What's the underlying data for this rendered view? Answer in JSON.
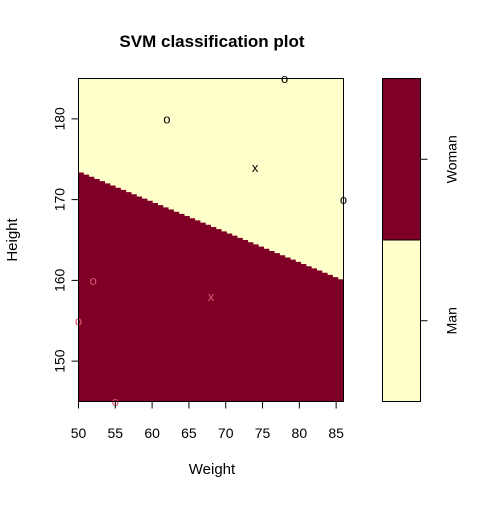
{
  "chart_data": {
    "type": "scatter",
    "title": "SVM classification plot",
    "xlabel": "Weight",
    "ylabel": "Height",
    "xlim": [
      50,
      86
    ],
    "ylim": [
      145,
      185
    ],
    "x_ticks": [
      50,
      55,
      60,
      65,
      70,
      75,
      80,
      85
    ],
    "y_ticks": [
      150,
      160,
      170,
      180
    ],
    "decision_boundary": {
      "description_points": [
        [
          50,
          173.5
        ],
        [
          86,
          160
        ]
      ],
      "region_above": "Man",
      "region_below": "Woman"
    },
    "colors": {
      "Woman": "#7F0027",
      "Man": "#FFFFCC",
      "points_in_man_region": "#000000",
      "points_in_woman_region": "#DF536B"
    },
    "points": [
      {
        "x": 62,
        "y": 180,
        "marker": "o"
      },
      {
        "x": 74,
        "y": 174,
        "marker": "x"
      },
      {
        "x": 78,
        "y": 185,
        "marker": "o"
      },
      {
        "x": 86,
        "y": 170,
        "marker": "o"
      },
      {
        "x": 52,
        "y": 160,
        "marker": "o"
      },
      {
        "x": 68,
        "y": 158,
        "marker": "x"
      },
      {
        "x": 50,
        "y": 155,
        "marker": "o"
      },
      {
        "x": 55,
        "y": 145,
        "marker": "o"
      }
    ],
    "legend": {
      "type": "colorbar",
      "placement": "right",
      "classes": [
        "Man",
        "Woman"
      ]
    }
  }
}
